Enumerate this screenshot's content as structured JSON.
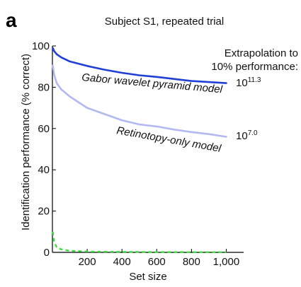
{
  "panel_letter": "a",
  "chart_data": {
    "type": "line",
    "title": "Subject S1, repeated trial",
    "xlabel": "Set size",
    "ylabel": "Identification performance (% correct)",
    "xlim": [
      0,
      1100
    ],
    "ylim": [
      0,
      100
    ],
    "xticks": [
      200,
      400,
      600,
      800,
      1000
    ],
    "xtick_labels": [
      "200",
      "400",
      "600",
      "800",
      "1,000"
    ],
    "yticks": [
      0,
      20,
      40,
      60,
      80,
      100
    ],
    "ytick_labels": [
      "0",
      "20",
      "40",
      "60",
      "80",
      "100"
    ],
    "grid": false,
    "extrapolation_heading": [
      "Extrapolation to",
      "10% performance:"
    ],
    "series": [
      {
        "name": "Gabor wavelet pyramid model",
        "color": "#1f3fd6",
        "style": "solid",
        "extrapolation_base": "10",
        "extrapolation_exp": "11.3",
        "x": [
          2,
          10,
          25,
          50,
          100,
          200,
          300,
          400,
          500,
          600,
          700,
          800,
          900,
          1000
        ],
        "y": [
          99,
          97.5,
          96,
          94.5,
          92.5,
          90.3,
          88.5,
          87,
          85.8,
          85,
          84,
          83,
          82.5,
          82
        ]
      },
      {
        "name": "Retinotopy-only model",
        "color": "#b3b9f0",
        "style": "solid",
        "extrapolation_base": "10",
        "extrapolation_exp": "7.0",
        "x": [
          2,
          10,
          25,
          50,
          100,
          200,
          300,
          400,
          500,
          600,
          700,
          800,
          900,
          1000
        ],
        "y": [
          90.5,
          86,
          82,
          79,
          75.5,
          70,
          67,
          64,
          62,
          61,
          59.5,
          58.3,
          57.3,
          56
        ]
      },
      {
        "name": "",
        "color": "#33dd33",
        "style": "dashed",
        "x": [
          2,
          10,
          25,
          50,
          100,
          200,
          300,
          400,
          500,
          600,
          700,
          800,
          900,
          1000
        ],
        "y": [
          10,
          5,
          2.5,
          1.5,
          0.8,
          0.4,
          0.3,
          0.25,
          0.2,
          0.15,
          0.12,
          0.1,
          0.1,
          0.1
        ]
      }
    ]
  }
}
